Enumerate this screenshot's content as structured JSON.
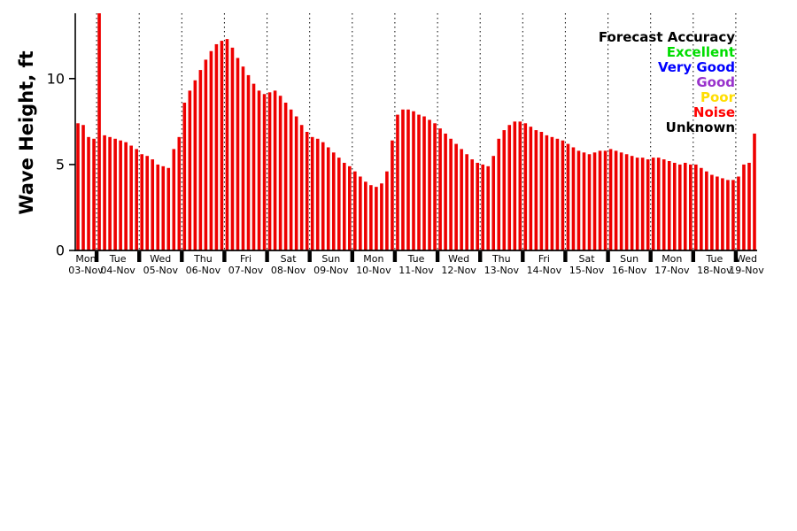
{
  "chart_data": {
    "type": "bar",
    "title": "",
    "ylabel": "Wave Height, ft",
    "ylim": [
      0,
      13.8
    ],
    "yticks": [
      0,
      5,
      10
    ],
    "grid": "vertical-dotted-per-day",
    "bar_color": "#ee0000",
    "bar_accuracy_category": "Noise",
    "legend": {
      "position": "upper-right",
      "title": "Forecast Accuracy",
      "items": [
        {
          "label": "Excellent",
          "color": "#00dd00"
        },
        {
          "label": "Very Good",
          "color": "#0000ff"
        },
        {
          "label": "Good",
          "color": "#9933cc"
        },
        {
          "label": "Poor",
          "color": "#ffdd00"
        },
        {
          "label": "Noise",
          "color": "#ff0000"
        },
        {
          "label": "Unknown",
          "color": "#000000"
        }
      ]
    },
    "days": [
      {
        "weekday": "Mon",
        "date": "03-Nov"
      },
      {
        "weekday": "Tue",
        "date": "04-Nov"
      },
      {
        "weekday": "Wed",
        "date": "05-Nov"
      },
      {
        "weekday": "Thu",
        "date": "06-Nov"
      },
      {
        "weekday": "Fri",
        "date": "07-Nov"
      },
      {
        "weekday": "Sat",
        "date": "08-Nov"
      },
      {
        "weekday": "Sun",
        "date": "09-Nov"
      },
      {
        "weekday": "Mon",
        "date": "10-Nov"
      },
      {
        "weekday": "Tue",
        "date": "11-Nov"
      },
      {
        "weekday": "Wed",
        "date": "12-Nov"
      },
      {
        "weekday": "Thu",
        "date": "13-Nov"
      },
      {
        "weekday": "Fri",
        "date": "14-Nov"
      },
      {
        "weekday": "Sat",
        "date": "15-Nov"
      },
      {
        "weekday": "Sun",
        "date": "16-Nov"
      },
      {
        "weekday": "Mon",
        "date": "17-Nov"
      },
      {
        "weekday": "Tue",
        "date": "18-Nov"
      },
      {
        "weekday": "Wed",
        "date": "19-Nov"
      }
    ],
    "bars_per_day": 8,
    "first_day_bars": 4,
    "last_day_bars": 4,
    "values": [
      7.4,
      7.3,
      6.6,
      6.5,
      14.0,
      6.7,
      6.6,
      6.5,
      6.4,
      6.3,
      6.1,
      5.9,
      5.6,
      5.5,
      5.3,
      5.0,
      4.9,
      4.8,
      5.9,
      6.6,
      8.6,
      9.3,
      9.9,
      10.5,
      11.1,
      11.6,
      12.0,
      12.2,
      12.3,
      11.8,
      11.2,
      10.7,
      10.2,
      9.7,
      9.3,
      9.1,
      9.2,
      9.3,
      9.0,
      8.6,
      8.2,
      7.8,
      7.3,
      6.9,
      6.6,
      6.5,
      6.3,
      6.0,
      5.7,
      5.4,
      5.1,
      4.9,
      4.6,
      4.3,
      4.0,
      3.8,
      3.7,
      3.9,
      4.6,
      6.4,
      7.9,
      8.2,
      8.2,
      8.1,
      7.9,
      7.8,
      7.6,
      7.4,
      7.1,
      6.8,
      6.5,
      6.2,
      5.9,
      5.6,
      5.3,
      5.1,
      5.0,
      4.9,
      5.5,
      6.5,
      7.0,
      7.3,
      7.5,
      7.5,
      7.4,
      7.2,
      7.0,
      6.9,
      6.7,
      6.6,
      6.5,
      6.4,
      6.2,
      6.0,
      5.8,
      5.7,
      5.6,
      5.7,
      5.8,
      5.8,
      5.9,
      5.8,
      5.7,
      5.6,
      5.5,
      5.4,
      5.4,
      5.3,
      5.4,
      5.4,
      5.3,
      5.2,
      5.1,
      5.0,
      5.1,
      5.0,
      5.0,
      4.8,
      4.6,
      4.4,
      4.3,
      4.2,
      4.1,
      4.1,
      4.3,
      5.0,
      5.1,
      6.8
    ]
  }
}
